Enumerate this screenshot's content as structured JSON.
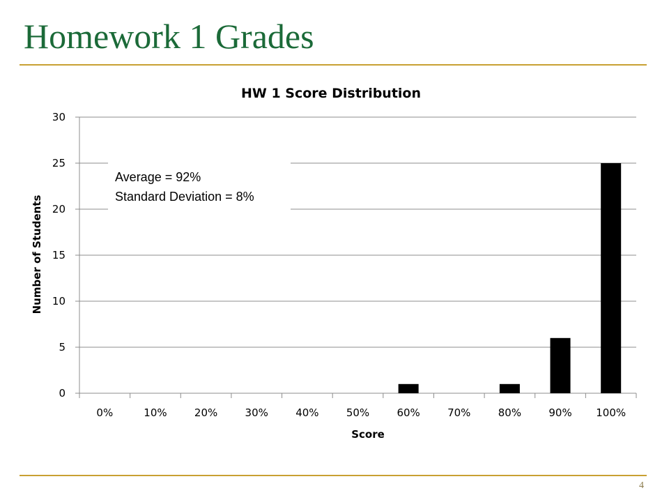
{
  "slide": {
    "title": "Homework 1 Grades",
    "page_number": "4",
    "title_color": "#1b6a38",
    "rule_color": "#c8a032"
  },
  "chart_data": {
    "type": "bar",
    "title": "HW 1 Score Distribution",
    "xlabel": "Score",
    "ylabel": "Number of Students",
    "categories": [
      "0%",
      "10%",
      "20%",
      "30%",
      "40%",
      "50%",
      "60%",
      "70%",
      "80%",
      "90%",
      "100%"
    ],
    "values": [
      0,
      0,
      0,
      0,
      0,
      0,
      1,
      0,
      1,
      6,
      25
    ],
    "ylim": [
      0,
      30
    ],
    "yticks": [
      0,
      5,
      10,
      15,
      20,
      25,
      30
    ],
    "grid": true,
    "bar_color": "#000000",
    "annotations": [
      "Average = 92%",
      "Standard Deviation = 8%"
    ]
  }
}
